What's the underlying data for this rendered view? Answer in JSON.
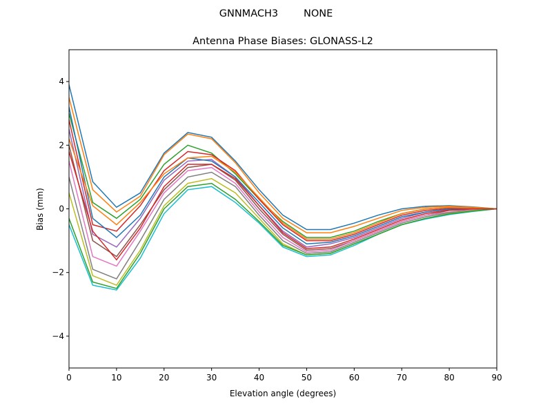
{
  "chart_data": {
    "type": "line",
    "suptitle": "GNNMACH3        NONE",
    "title": "Antenna Phase Biases: GLONASS-L2",
    "xlabel": "Elevation angle (degrees)",
    "ylabel": "Bias (mm)",
    "xlim": [
      0,
      90
    ],
    "ylim": [
      -5,
      5
    ],
    "xticks": [
      0,
      10,
      20,
      30,
      40,
      50,
      60,
      70,
      80,
      90
    ],
    "yticks": [
      -4,
      -2,
      0,
      2,
      4
    ],
    "ytick_labels": [
      "−4",
      "−2",
      "0",
      "2",
      "4"
    ],
    "grid": false,
    "legend": "none",
    "colors": [
      "#1f77b4",
      "#ff7f0e",
      "#2ca02c",
      "#d62728",
      "#9467bd",
      "#8c564b",
      "#e377c2",
      "#7f7f7f",
      "#bcbd22",
      "#17becf"
    ],
    "x": [
      0,
      5,
      10,
      15,
      20,
      25,
      30,
      35,
      40,
      45,
      50,
      55,
      60,
      65,
      70,
      75,
      80,
      85,
      90
    ],
    "series": [
      {
        "values": [
          3.9,
          0.85,
          0.05,
          0.5,
          1.75,
          2.4,
          2.25,
          1.5,
          0.6,
          -0.2,
          -0.65,
          -0.65,
          -0.45,
          -0.2,
          0,
          0.08,
          0.1,
          0.06,
          0
        ]
      },
      {
        "values": [
          3.5,
          0.6,
          -0.1,
          0.4,
          1.7,
          2.35,
          2.2,
          1.45,
          0.5,
          -0.3,
          -0.75,
          -0.75,
          -0.55,
          -0.3,
          -0.05,
          0.05,
          0.08,
          0.05,
          0
        ]
      },
      {
        "values": [
          3.0,
          0.2,
          -0.3,
          0.3,
          1.4,
          2.0,
          1.75,
          1.1,
          0.3,
          -0.4,
          -0.9,
          -0.9,
          -0.7,
          -0.4,
          -0.15,
          0,
          0.05,
          0.03,
          0
        ]
      },
      {
        "values": [
          2.8,
          -0.5,
          -0.7,
          0.1,
          1.2,
          1.8,
          1.7,
          1.2,
          0.3,
          -0.5,
          -1.0,
          -1.0,
          -0.8,
          -0.5,
          -0.2,
          -0.05,
          0.02,
          0.02,
          0
        ]
      },
      {
        "values": [
          2.5,
          -0.8,
          -1.2,
          -0.3,
          0.9,
          1.5,
          1.55,
          1.0,
          0.1,
          -0.7,
          -1.2,
          -1.1,
          -0.9,
          -0.6,
          -0.3,
          -0.1,
          0,
          0,
          0
        ]
      },
      {
        "values": [
          2.0,
          -1.0,
          -1.5,
          -0.5,
          0.6,
          1.3,
          1.4,
          0.9,
          0,
          -0.8,
          -1.3,
          -1.25,
          -1.0,
          -0.7,
          -0.4,
          -0.2,
          -0.05,
          -0.02,
          0
        ]
      },
      {
        "values": [
          1.5,
          -1.5,
          -1.8,
          -0.7,
          0.5,
          1.2,
          1.3,
          0.8,
          -0.1,
          -0.9,
          -1.35,
          -1.3,
          -1.0,
          -0.7,
          -0.4,
          -0.2,
          -0.1,
          -0.03,
          0
        ]
      },
      {
        "values": [
          1.0,
          -1.9,
          -2.2,
          -1.0,
          0.3,
          1.0,
          1.15,
          0.7,
          -0.2,
          -1.0,
          -1.4,
          -1.35,
          -1.05,
          -0.75,
          -0.45,
          -0.25,
          -0.12,
          -0.05,
          0
        ]
      },
      {
        "values": [
          0.5,
          -2.1,
          -2.4,
          -1.3,
          0.1,
          0.8,
          0.95,
          0.5,
          -0.3,
          -1.1,
          -1.45,
          -1.4,
          -1.1,
          -0.8,
          -0.5,
          -0.3,
          -0.15,
          -0.06,
          0
        ]
      },
      {
        "values": [
          -0.5,
          -2.4,
          -2.55,
          -1.55,
          -0.15,
          0.6,
          0.7,
          0.2,
          -0.45,
          -1.2,
          -1.5,
          -1.45,
          -1.15,
          -0.8,
          -0.5,
          -0.32,
          -0.18,
          -0.08,
          0
        ]
      },
      {
        "values": [
          3.2,
          -0.3,
          -0.9,
          -0.2,
          1.0,
          1.6,
          1.5,
          1.0,
          0.2,
          -0.6,
          -1.1,
          -1.05,
          -0.85,
          -0.55,
          -0.25,
          -0.1,
          0,
          0,
          0
        ]
      },
      {
        "values": [
          2.2,
          0.1,
          -0.5,
          0.2,
          1.1,
          1.6,
          1.65,
          1.15,
          0.35,
          -0.45,
          -0.95,
          -0.95,
          -0.75,
          -0.45,
          -0.15,
          0,
          0.05,
          0.03,
          0
        ]
      },
      {
        "values": [
          -0.3,
          -2.3,
          -2.5,
          -1.4,
          0,
          0.7,
          0.8,
          0.3,
          -0.4,
          -1.15,
          -1.45,
          -1.4,
          -1.1,
          -0.8,
          -0.5,
          -0.3,
          -0.16,
          -0.07,
          0
        ]
      },
      {
        "values": [
          1.8,
          -0.7,
          -1.6,
          -0.6,
          0.7,
          1.4,
          1.4,
          0.95,
          0.1,
          -0.75,
          -1.25,
          -1.2,
          -0.95,
          -0.65,
          -0.35,
          -0.15,
          -0.03,
          0,
          0
        ]
      }
    ]
  }
}
